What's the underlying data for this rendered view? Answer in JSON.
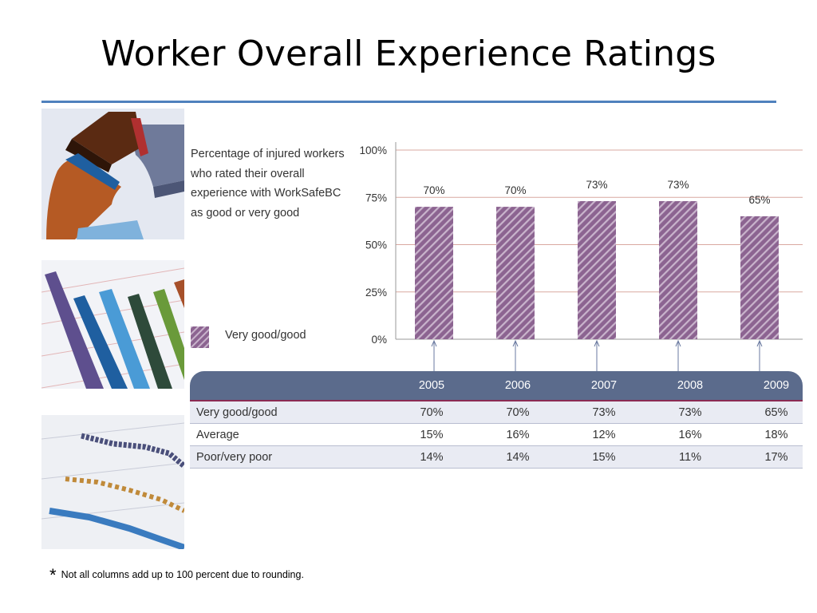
{
  "slide": {
    "title": "Worker Overall Experience Ratings",
    "footnote_marker": "*",
    "footnote": "Not all columns add up to 100 percent due to rounding."
  },
  "chart_description": "Percentage of injured workers who rated their overall experience with WorkSafeBC as good or very good",
  "legend_label": "Very good/good",
  "colors": {
    "bar_fill": "#8c6491",
    "bar_hatch": "#c9b4cc",
    "accent_rule": "#4f81bd",
    "table_header": "#5b6b8c",
    "header_separator": "#8c2a52",
    "gridline": "#d9a8a0",
    "row_shade": "#e9ebf3"
  },
  "chart_data": {
    "type": "bar",
    "categories": [
      "2005",
      "2006",
      "2007",
      "2008",
      "2009"
    ],
    "values": [
      70,
      70,
      73,
      73,
      65
    ],
    "value_labels": [
      "70%",
      "70%",
      "73%",
      "73%",
      "65%"
    ],
    "ylim": [
      0,
      100
    ],
    "yticks": [
      "0%",
      "25%",
      "50%",
      "75%",
      "100%"
    ],
    "ytick_values": [
      0,
      25,
      50,
      75,
      100
    ],
    "grid": true,
    "legend": "left"
  },
  "table": {
    "columns": [
      "2005",
      "2006",
      "2007",
      "2008",
      "2009"
    ],
    "rows": [
      {
        "label": "Very good/good",
        "values": [
          "70%",
          "70%",
          "73%",
          "73%",
          "65%"
        ]
      },
      {
        "label": "Average",
        "values": [
          "15%",
          "16%",
          "12%",
          "16%",
          "18%"
        ]
      },
      {
        "label": "Poor/very poor",
        "values": [
          "14%",
          "14%",
          "15%",
          "11%",
          "17%"
        ]
      }
    ]
  },
  "decorative_thumbnails": [
    "pie-chart-thumbnail",
    "bar-chart-thumbnail",
    "line-chart-thumbnail"
  ]
}
